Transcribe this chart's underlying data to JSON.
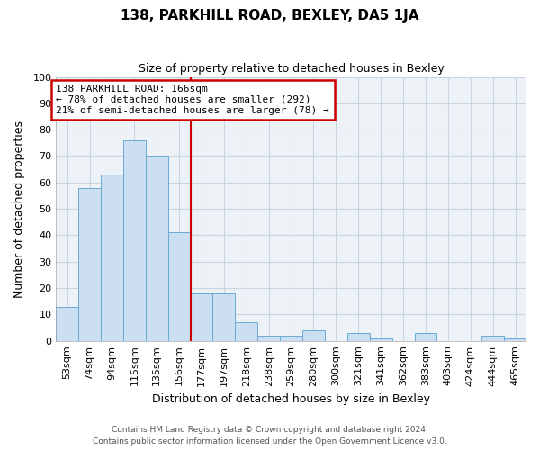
{
  "title": "138, PARKHILL ROAD, BEXLEY, DA5 1JA",
  "subtitle": "Size of property relative to detached houses in Bexley",
  "xlabel": "Distribution of detached houses by size in Bexley",
  "ylabel": "Number of detached properties",
  "bar_labels": [
    "53sqm",
    "74sqm",
    "94sqm",
    "115sqm",
    "135sqm",
    "156sqm",
    "177sqm",
    "197sqm",
    "218sqm",
    "238sqm",
    "259sqm",
    "280sqm",
    "300sqm",
    "321sqm",
    "341sqm",
    "362sqm",
    "383sqm",
    "403sqm",
    "424sqm",
    "444sqm",
    "465sqm"
  ],
  "bar_values": [
    13,
    58,
    63,
    76,
    70,
    41,
    18,
    18,
    7,
    2,
    2,
    4,
    0,
    3,
    1,
    0,
    3,
    0,
    0,
    2,
    1
  ],
  "bar_color": "#ccdff2",
  "bar_edge_color": "#6aaad4",
  "vline_x": 5.5,
  "vline_color": "#cc0000",
  "annotation_line1": "138 PARKHILL ROAD: 166sqm",
  "annotation_line2": "← 78% of detached houses are smaller (292)",
  "annotation_line3": "21% of semi-detached houses are larger (78) →",
  "annotation_box_color": "white",
  "annotation_box_edge": "#cc0000",
  "ylim": [
    0,
    100
  ],
  "yticks": [
    0,
    10,
    20,
    30,
    40,
    50,
    60,
    70,
    80,
    90,
    100
  ],
  "grid_color": "#c8d4e0",
  "background_color": "#edf2f7",
  "footer_line1": "Contains HM Land Registry data © Crown copyright and database right 2024.",
  "footer_line2": "Contains public sector information licensed under the Open Government Licence v3.0.",
  "title_fontsize": 11,
  "subtitle_fontsize": 9,
  "tick_fontsize": 8,
  "xlabel_fontsize": 9,
  "ylabel_fontsize": 9,
  "footer_fontsize": 6.5,
  "annotation_fontsize": 8
}
